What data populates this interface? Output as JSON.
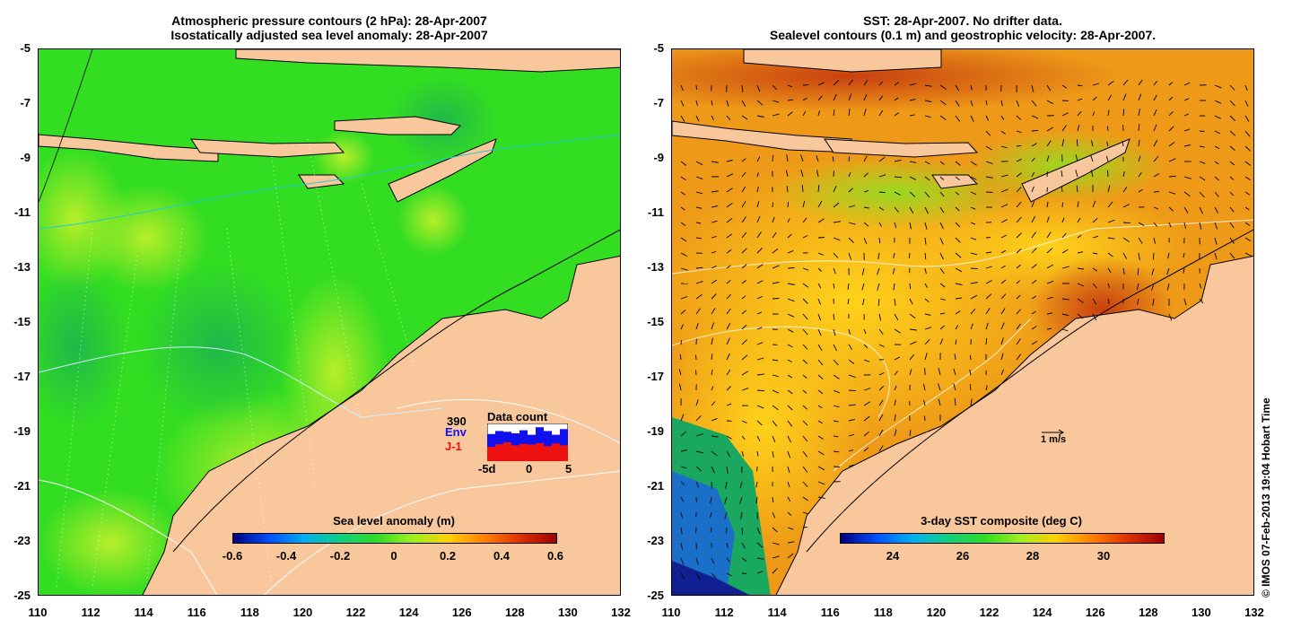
{
  "left_panel": {
    "title_line1": "Atmospheric pressure contours (2 hPa): 28-Apr-2007",
    "title_line2": "Isostatically adjusted sea level anomaly: 28-Apr-2007",
    "colorbar_label": "Sea level anomaly (m)",
    "colorbar_ticks": [
      "-0.6",
      "-0.4",
      "-0.2",
      "0",
      "0.2",
      "0.4",
      "0.6"
    ],
    "colors": {
      "ocean": "#33dd22",
      "land": "#f9c79c"
    },
    "inset": {
      "count": "390",
      "label_env": "Env",
      "label_j1": "J-1",
      "title": "Data count",
      "ticks": [
        "-5d",
        "0",
        "5"
      ],
      "env_color": "#1111ee",
      "j1_color": "#ee1111",
      "env_fraction": [
        0.72,
        0.8,
        0.78,
        0.74,
        0.82,
        0.7,
        0.9,
        0.8,
        0.7,
        0.85
      ],
      "j1_fraction": [
        0.38,
        0.45,
        0.5,
        0.42,
        0.46,
        0.44,
        0.48,
        0.4,
        0.47,
        0.42
      ]
    }
  },
  "right_panel": {
    "title_line1": "SST: 28-Apr-2007. No drifter data.",
    "title_line2": "Sealevel contours (0.1 m) and geostrophic velocity: 28-Apr-2007.",
    "colorbar_label": "3-day SST composite (deg C)",
    "colorbar_ticks": [
      "24",
      "26",
      "28",
      "30"
    ],
    "scale_label": "1 m/s",
    "colors": {
      "ocean": "#ee9a18",
      "land": "#f9c79c"
    }
  },
  "axes": {
    "y_ticks": [
      "-5",
      "-7",
      "-9",
      "-11",
      "-13",
      "-15",
      "-17",
      "-19",
      "-21",
      "-23",
      "-25"
    ],
    "x_ticks": [
      "110",
      "112",
      "114",
      "116",
      "118",
      "120",
      "122",
      "124",
      "126",
      "128",
      "130",
      "132"
    ],
    "lon_range": [
      110,
      132
    ],
    "lat_range": [
      -25,
      -5
    ]
  },
  "credit": "© IMOS 07-Feb-2013 19:04 Hobart Time"
}
